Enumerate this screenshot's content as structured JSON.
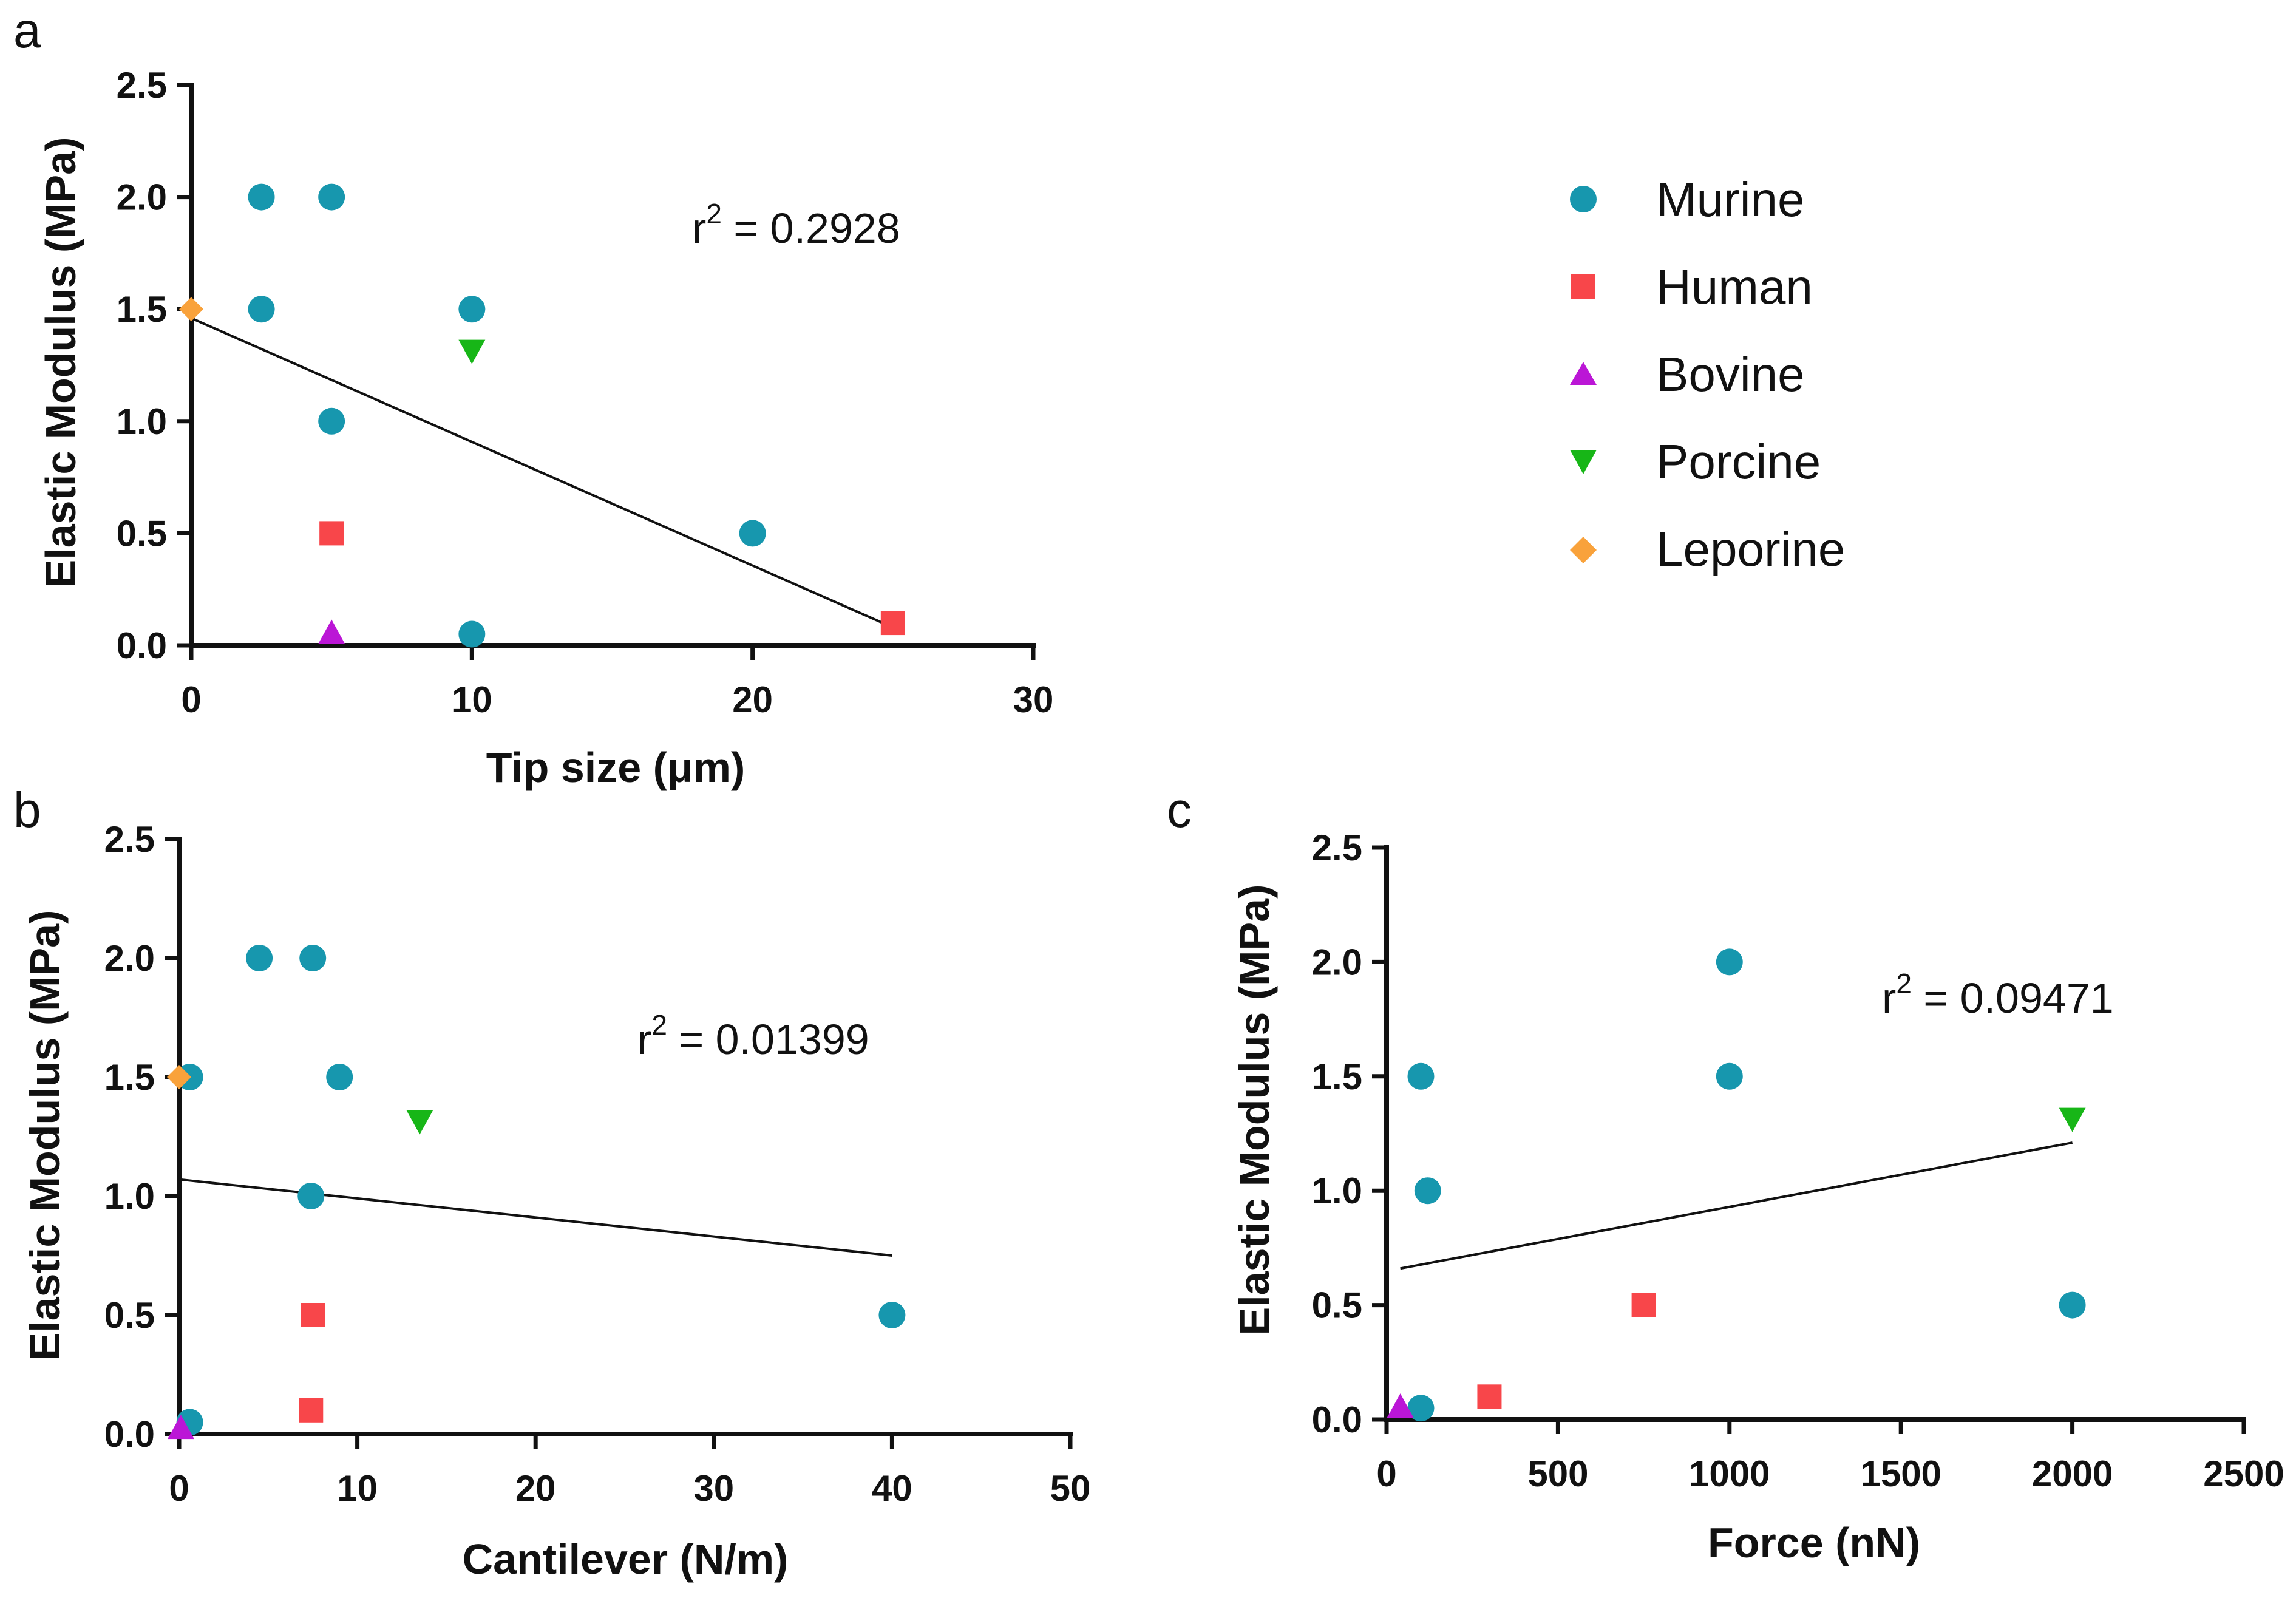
{
  "legend": [
    {
      "name": "Murine",
      "marker": "circle",
      "color": "#1797AE"
    },
    {
      "name": "Human",
      "marker": "square",
      "color": "#F8464A"
    },
    {
      "name": "Bovine",
      "marker": "triangle-up",
      "color": "#BB16D6"
    },
    {
      "name": "Porcine",
      "marker": "triangle-down",
      "color": "#17B617"
    },
    {
      "name": "Leporine",
      "marker": "diamond",
      "color": "#F9A23B"
    }
  ],
  "chart_data": [
    {
      "panel": "a",
      "type": "scatter",
      "xlabel": "Tip size (μm)",
      "ylabel": "Elastic Modulus (MPa)",
      "xlim": [
        0,
        30
      ],
      "ylim": [
        0,
        2.5
      ],
      "xticks": [
        "0",
        "10",
        "20",
        "30"
      ],
      "yticks": [
        "0.0",
        "0.5",
        "1.0",
        "1.5",
        "2.0",
        "2.5"
      ],
      "r2_prefix": "r",
      "r2_exp": "2",
      "r2_value": " = 0.2928",
      "fit": {
        "x": [
          0,
          25
        ],
        "y": [
          1.46,
          0.08
        ]
      },
      "series": [
        {
          "name": "Murine",
          "points": [
            [
              2.5,
              2.0
            ],
            [
              5,
              2.0
            ],
            [
              2.5,
              1.5
            ],
            [
              10,
              1.5
            ],
            [
              5,
              1.0
            ],
            [
              20,
              0.5
            ],
            [
              10,
              0.05
            ]
          ]
        },
        {
          "name": "Human",
          "points": [
            [
              5,
              0.5
            ],
            [
              25,
              0.1
            ]
          ]
        },
        {
          "name": "Bovine",
          "points": [
            [
              5,
              0.05
            ]
          ]
        },
        {
          "name": "Porcine",
          "points": [
            [
              10,
              1.32
            ]
          ]
        },
        {
          "name": "Leporine",
          "points": [
            [
              0,
              1.5
            ]
          ]
        }
      ]
    },
    {
      "panel": "b",
      "type": "scatter",
      "xlabel": "Cantilever (N/m)",
      "ylabel": "Elastic Modulus (MPa)",
      "xlim": [
        0,
        50
      ],
      "ylim": [
        0,
        2.5
      ],
      "xticks": [
        "0",
        "10",
        "20",
        "30",
        "40",
        "50"
      ],
      "yticks": [
        "0.0",
        "0.5",
        "1.0",
        "1.5",
        "2.0",
        "2.5"
      ],
      "r2_prefix": "r",
      "r2_exp": "2",
      "r2_value": " = 0.01399",
      "fit": {
        "x": [
          0,
          40
        ],
        "y": [
          1.07,
          0.75
        ]
      },
      "series": [
        {
          "name": "Murine",
          "points": [
            [
              4.5,
              2.0
            ],
            [
              7.5,
              2.0
            ],
            [
              0.6,
              1.5
            ],
            [
              9,
              1.5
            ],
            [
              7.4,
              1.0
            ],
            [
              40,
              0.5
            ],
            [
              0.6,
              0.05
            ]
          ]
        },
        {
          "name": "Human",
          "points": [
            [
              7.5,
              0.5
            ],
            [
              7.4,
              0.1
            ]
          ]
        },
        {
          "name": "Bovine",
          "points": [
            [
              0.1,
              0.02
            ]
          ]
        },
        {
          "name": "Porcine",
          "points": [
            [
              13.5,
              1.32
            ]
          ]
        },
        {
          "name": "Leporine",
          "points": [
            [
              0,
              1.5
            ]
          ]
        }
      ]
    },
    {
      "panel": "c",
      "type": "scatter",
      "xlabel": "Force (nN)",
      "ylabel": "Elastic Modulus (MPa)",
      "xlim": [
        0,
        2500
      ],
      "ylim": [
        0,
        2.5
      ],
      "xticks": [
        "0",
        "500",
        "1000",
        "1500",
        "2000",
        "2500"
      ],
      "yticks": [
        "0.0",
        "0.5",
        "1.0",
        "1.5",
        "2.0",
        "2.5"
      ],
      "r2_prefix": "r",
      "r2_exp": "2",
      "r2_value": " = 0.09471",
      "fit": {
        "x": [
          40,
          2000
        ],
        "y": [
          0.66,
          1.21
        ]
      },
      "series": [
        {
          "name": "Murine",
          "points": [
            [
              1000,
              2.0
            ],
            [
              100,
              1.5
            ],
            [
              1000,
              1.5
            ],
            [
              120,
              1.0
            ],
            [
              2000,
              0.5
            ],
            [
              100,
              0.05
            ]
          ]
        },
        {
          "name": "Human",
          "points": [
            [
              750,
              0.5
            ],
            [
              300,
              0.1
            ]
          ]
        },
        {
          "name": "Bovine",
          "points": [
            [
              40,
              0.05
            ]
          ]
        },
        {
          "name": "Porcine",
          "points": [
            [
              2000,
              1.32
            ]
          ]
        },
        {
          "name": "Leporine",
          "points": []
        }
      ]
    }
  ]
}
